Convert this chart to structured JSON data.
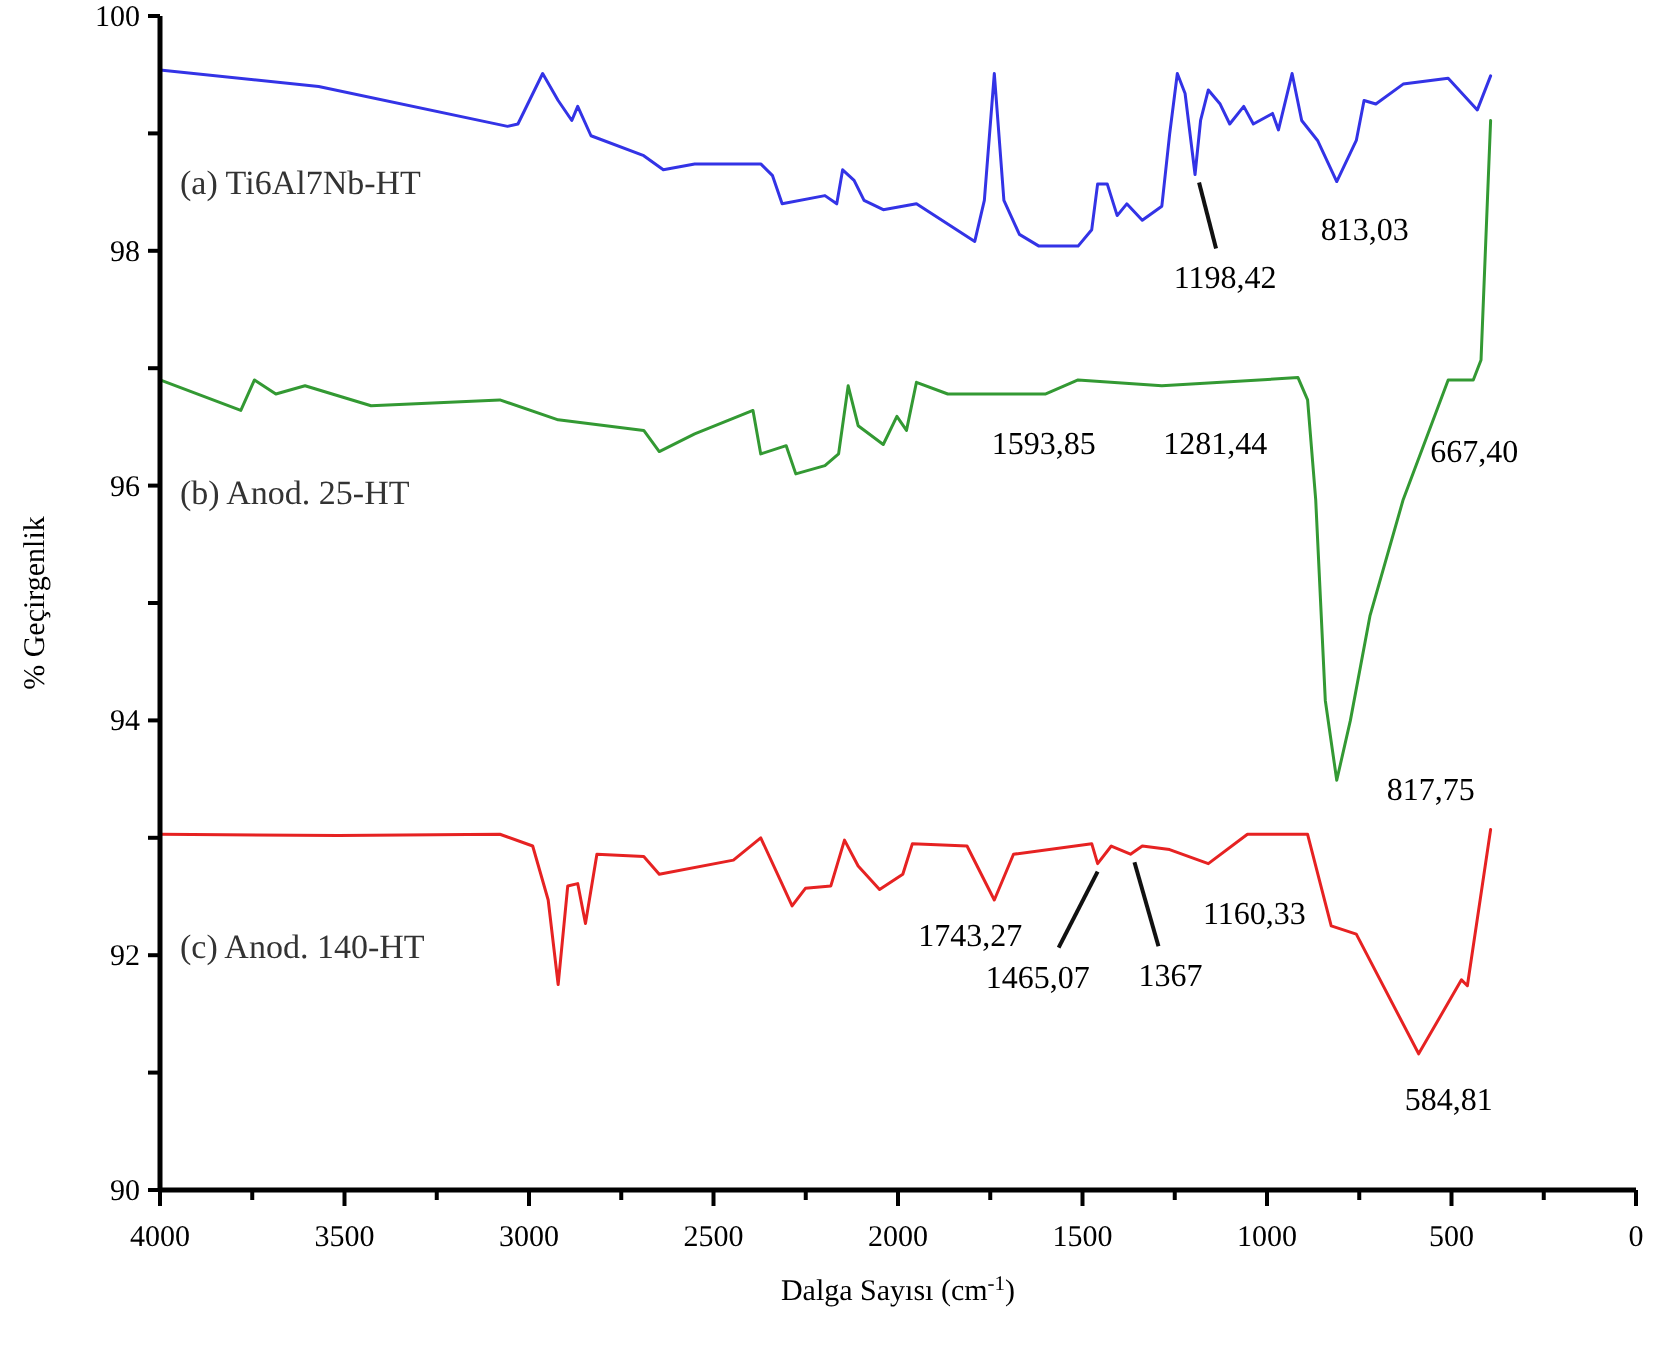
{
  "chart_data": {
    "type": "line",
    "xlabel": "Dalga Sayısı (cm$^{-1}$)",
    "ylabel": "% Geçirgenlik",
    "xlim": [
      4000,
      0
    ],
    "xticks": [
      4000,
      {
        "value": 3750,
        "label": null
      },
      3500,
      {
        "value": 3250,
        "label": null
      },
      3000,
      {
        "value": 2750,
        "label": null
      },
      2500,
      {
        "value": 2250,
        "label": null
      },
      2000,
      {
        "value": 1750,
        "label": null
      },
      1500,
      {
        "value": 1250,
        "label": null
      },
      1000,
      {
        "value": 750,
        "label": null
      },
      500,
      {
        "value": 250,
        "label": null
      },
      0
    ],
    "ylim": [
      90,
      100
    ],
    "yticks": [
      90,
      {
        "value": 91,
        "label": null
      },
      92,
      {
        "value": 93,
        "label": null
      },
      94,
      {
        "value": 95,
        "label": null
      },
      96,
      {
        "value": 97,
        "label": null
      },
      98,
      {
        "value": 99,
        "label": null
      },
      100
    ],
    "grid": false,
    "marker": "none",
    "line_style": "solid",
    "series": [
      {
        "name": "(a) Ti6Al7Nb-HT",
        "color": "#3333e6",
        "x": [
          4000,
          3570,
          3058,
          3030,
          2963,
          2921,
          2884,
          2868,
          2832,
          2689,
          2636,
          2551,
          2372,
          2340,
          2314,
          2198,
          2166,
          2150,
          2119,
          2092,
          2040,
          1950,
          1792,
          1766,
          1739,
          1713,
          1671,
          1618,
          1512,
          1475,
          1459,
          1433,
          1406,
          1380,
          1338,
          1285,
          1264,
          1243,
          1222,
          1195,
          1180,
          1159,
          1127,
          1101,
          1063,
          1037,
          985,
          969,
          932,
          906,
          863,
          811,
          758,
          737,
          705,
          631,
          509,
          430,
          394
        ],
        "values": [
          99.54,
          99.4,
          99.06,
          99.08,
          99.51,
          99.28,
          99.11,
          99.23,
          98.98,
          98.81,
          98.69,
          98.74,
          98.74,
          98.64,
          98.4,
          98.47,
          98.4,
          98.69,
          98.6,
          98.43,
          98.35,
          98.4,
          98.08,
          98.43,
          99.51,
          98.43,
          98.14,
          98.04,
          98.04,
          98.18,
          98.57,
          98.57,
          98.3,
          98.4,
          98.26,
          98.38,
          98.99,
          99.51,
          99.34,
          98.65,
          99.11,
          99.37,
          99.25,
          99.08,
          99.23,
          99.08,
          99.17,
          99.03,
          99.51,
          99.11,
          98.94,
          98.59,
          98.94,
          99.28,
          99.25,
          99.42,
          99.47,
          99.2,
          99.49
        ]
      },
      {
        "name": "(b) Anod. 25-HT",
        "color": "#339933",
        "x": [
          4000,
          3781,
          3744,
          3686,
          3607,
          3428,
          3079,
          2921,
          2689,
          2647,
          2551,
          2393,
          2372,
          2303,
          2277,
          2198,
          2161,
          2135,
          2108,
          2040,
          2003,
          1977,
          1950,
          1865,
          1601,
          1512,
          1285,
          916,
          890,
          868,
          842,
          811,
          774,
          721,
          631,
          509,
          441,
          420,
          394
        ],
        "values": [
          96.9,
          96.64,
          96.9,
          96.78,
          96.85,
          96.68,
          96.73,
          96.56,
          96.47,
          96.29,
          96.44,
          96.64,
          96.27,
          96.34,
          96.1,
          96.17,
          96.27,
          96.85,
          96.51,
          96.35,
          96.59,
          96.47,
          96.88,
          96.78,
          96.78,
          96.9,
          96.85,
          96.92,
          96.73,
          95.88,
          94.17,
          93.49,
          94.0,
          94.89,
          95.88,
          96.9,
          96.9,
          97.07,
          99.11
        ]
      },
      {
        "name": "(c) Anod. 140-HT",
        "color": "#e62222",
        "x": [
          4000,
          3517,
          3079,
          2990,
          2948,
          2921,
          2895,
          2868,
          2847,
          2816,
          2689,
          2647,
          2446,
          2372,
          2319,
          2287,
          2251,
          2182,
          2145,
          2108,
          2050,
          1987,
          1961,
          1813,
          1739,
          1687,
          1475,
          1459,
          1422,
          1370,
          1338,
          1264,
          1159,
          1053,
          890,
          826,
          758,
          589,
          473,
          457,
          394
        ],
        "values": [
          93.03,
          93.02,
          93.03,
          92.93,
          92.47,
          91.75,
          92.59,
          92.61,
          92.27,
          92.86,
          92.84,
          92.69,
          92.81,
          93.0,
          92.64,
          92.42,
          92.57,
          92.59,
          92.98,
          92.76,
          92.56,
          92.69,
          92.95,
          92.93,
          92.47,
          92.86,
          92.95,
          92.78,
          92.93,
          92.86,
          92.93,
          92.9,
          92.78,
          93.03,
          93.03,
          92.25,
          92.18,
          91.16,
          91.79,
          91.74,
          93.07
        ]
      }
    ],
    "annotations": [
      {
        "text": "1198,42",
        "x": 1195,
        "y": 98.65
      },
      {
        "text": "813,03",
        "x": 811,
        "y": 98.59
      },
      {
        "text": "1593,85",
        "x": 1594,
        "y": 96.78
      },
      {
        "text": "1281,44",
        "x": 1281,
        "y": 96.85
      },
      {
        "text": "667,40",
        "x": 590,
        "y": 96.3
      },
      {
        "text": "817,75",
        "x": 811,
        "y": 93.49
      },
      {
        "text": "1743,27",
        "x": 1739,
        "y": 92.47
      },
      {
        "text": "1465,07",
        "x": 1459,
        "y": 92.78
      },
      {
        "text": "1367",
        "x": 1370,
        "y": 92.86
      },
      {
        "text": "1160,33",
        "x": 1159,
        "y": 92.78
      },
      {
        "text": "584,81",
        "x": 589,
        "y": 91.16
      }
    ]
  }
}
